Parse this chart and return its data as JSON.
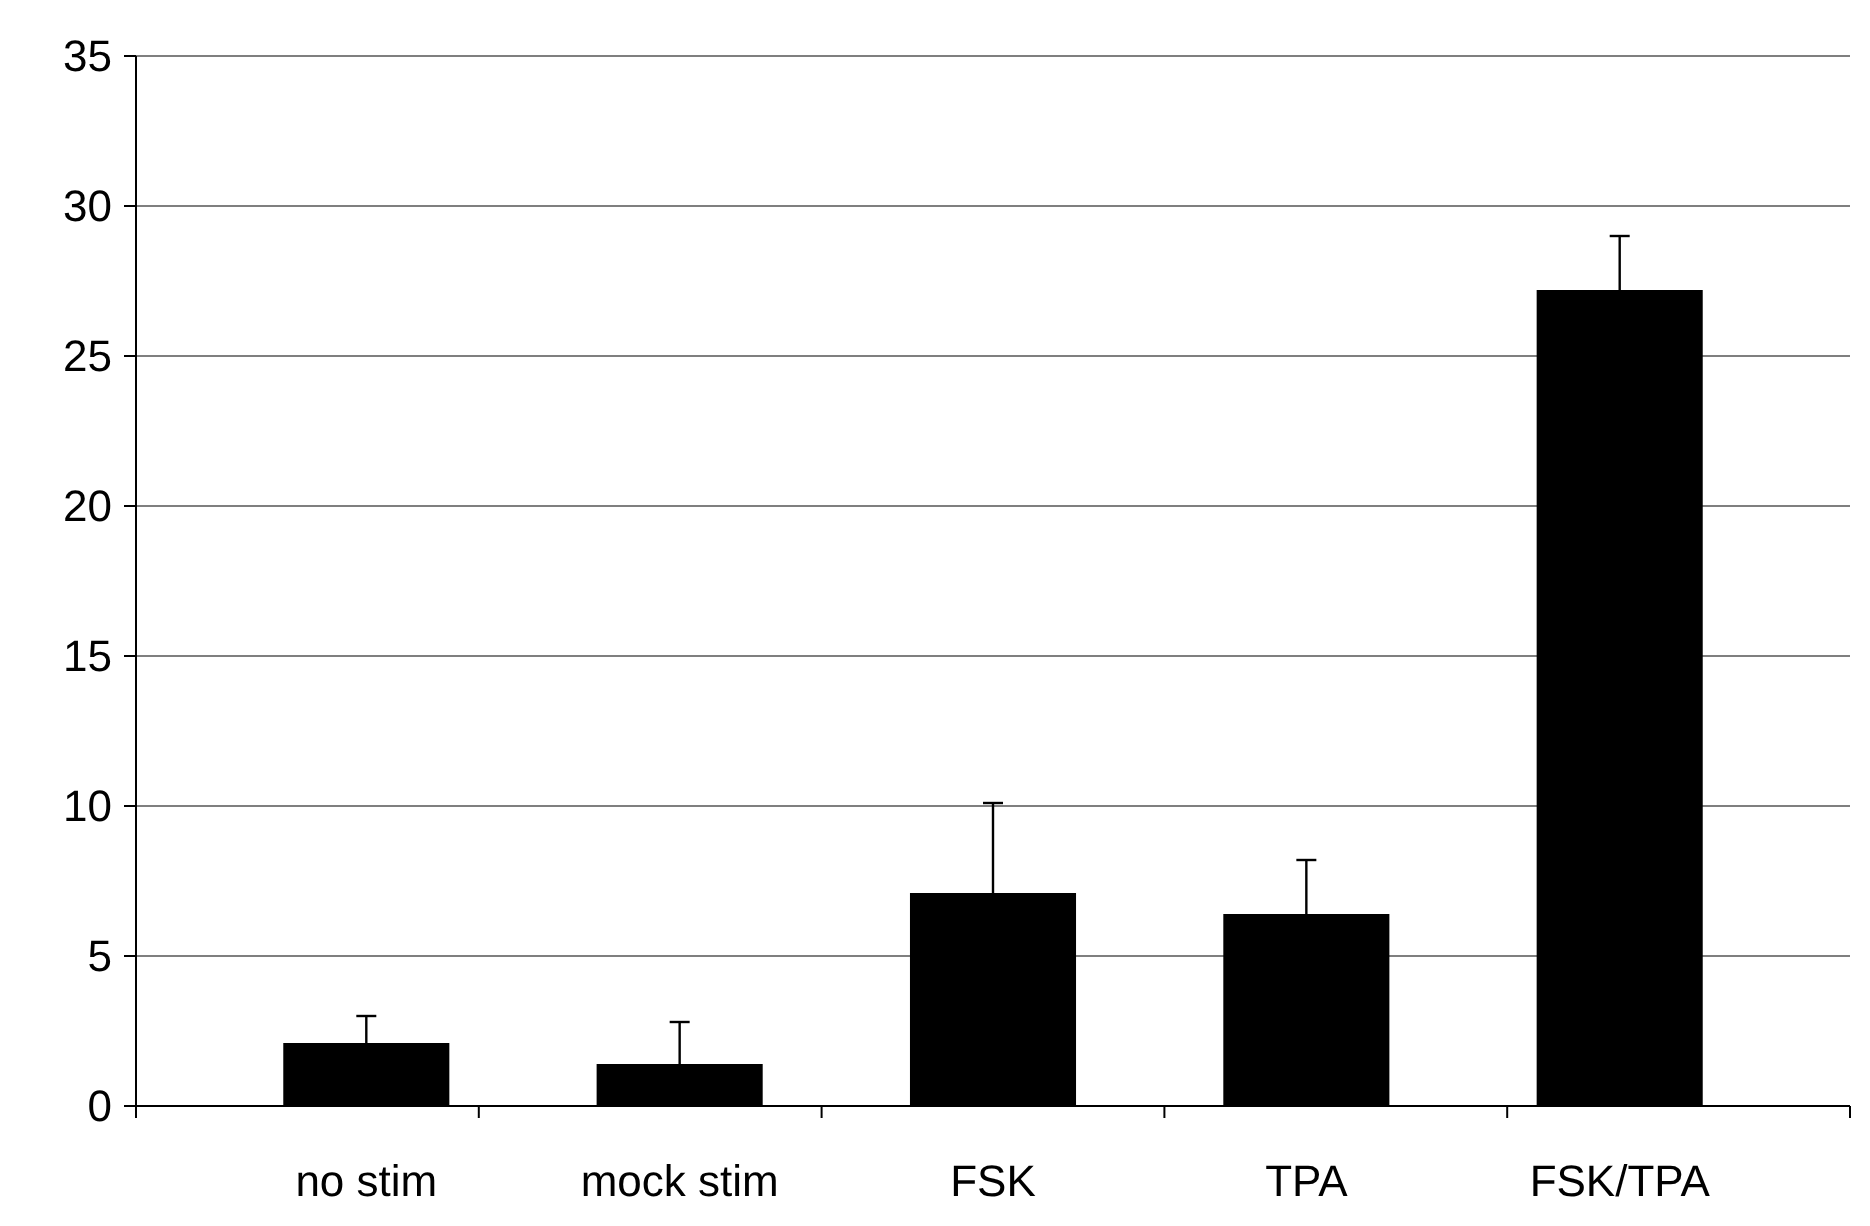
{
  "chart_data": {
    "type": "bar",
    "categories": [
      "no stim",
      "mock stim",
      "FSK",
      "TPA",
      "FSK/TPA"
    ],
    "values": [
      2.1,
      1.4,
      7.1,
      6.4,
      27.2
    ],
    "errors": [
      [
        2.1,
        3.0
      ],
      [
        1.4,
        2.8
      ],
      [
        7.1,
        10.1
      ],
      [
        6.4,
        8.2
      ],
      [
        27.2,
        29.0
      ]
    ],
    "color": "#000000",
    "ylim": [
      0,
      35
    ],
    "yticks": [
      0,
      5,
      10,
      15,
      20,
      25,
      30,
      35
    ],
    "grid": "y"
  }
}
